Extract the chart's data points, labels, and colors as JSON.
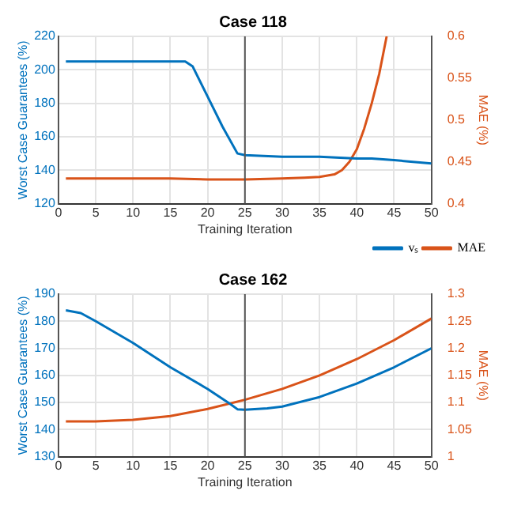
{
  "chart_data": [
    {
      "type": "line",
      "title": "Case 118",
      "xlabel": "Training Iteration",
      "ylabel": "Worst Case Guarantees (%)",
      "y2label": "MAE (%)",
      "xlim": [
        0,
        50
      ],
      "xticks": [
        0,
        5,
        10,
        15,
        20,
        25,
        30,
        35,
        40,
        45,
        50
      ],
      "ylim": [
        120,
        220
      ],
      "yticks": [
        120,
        140,
        160,
        180,
        200,
        220
      ],
      "y2lim": [
        0.4,
        0.6
      ],
      "y2ticks": [
        0.4,
        0.45,
        0.5,
        0.55,
        0.6
      ],
      "grid": true,
      "legend": false,
      "marker": "none",
      "ref_lines": [
        {
          "axis": "x",
          "value": 25,
          "color": "#555555"
        }
      ],
      "series": [
        {
          "color": "#0072bd",
          "x": [
            1,
            5,
            10,
            15,
            17,
            18,
            20,
            22,
            24,
            25,
            30,
            35,
            40,
            42,
            45,
            50
          ],
          "values": [
            205,
            205,
            205,
            205,
            205,
            202,
            184,
            166,
            150,
            149,
            148,
            148,
            147,
            147,
            146,
            144
          ]
        },
        {
          "color": "#d95319",
          "axis": "y2",
          "x": [
            1,
            5,
            10,
            15,
            20,
            25,
            30,
            33,
            35,
            37,
            38,
            39,
            40,
            41,
            42,
            43,
            44
          ],
          "values": [
            0.43,
            0.43,
            0.43,
            0.43,
            0.429,
            0.429,
            0.43,
            0.431,
            0.432,
            0.435,
            0.44,
            0.45,
            0.465,
            0.49,
            0.52,
            0.555,
            0.6
          ]
        }
      ]
    },
    {
      "type": "line",
      "title": "Case 162",
      "xlabel": "Training Iteration",
      "ylabel": "Worst Case Guarantees (%)",
      "y2label": "MAE (%)",
      "xlim": [
        0,
        50
      ],
      "xticks": [
        0,
        5,
        10,
        15,
        20,
        25,
        30,
        35,
        40,
        45,
        50
      ],
      "ylim": [
        130,
        190
      ],
      "yticks": [
        130,
        140,
        150,
        160,
        170,
        180,
        190
      ],
      "y2lim": [
        1,
        1.3
      ],
      "y2ticks": [
        1,
        1.05,
        1.1,
        1.15,
        1.2,
        1.25,
        1.3
      ],
      "grid": true,
      "legend": "top right",
      "marker": "none",
      "ref_lines": [
        {
          "axis": "x",
          "value": 25,
          "color": "#555555"
        }
      ],
      "series": [
        {
          "name": "vₛ",
          "color": "#0072bd",
          "x": [
            1,
            3,
            5,
            10,
            15,
            20,
            23,
            24,
            25,
            28,
            30,
            35,
            40,
            45,
            50
          ],
          "values": [
            184,
            183,
            180,
            172,
            163,
            155,
            149.5,
            147.5,
            147.3,
            147.8,
            148.5,
            152,
            157,
            163,
            170
          ]
        },
        {
          "name": "MAE",
          "color": "#d95319",
          "axis": "y2",
          "x": [
            1,
            5,
            10,
            15,
            20,
            25,
            30,
            35,
            40,
            45,
            50
          ],
          "values": [
            1.065,
            1.065,
            1.068,
            1.075,
            1.088,
            1.105,
            1.125,
            1.15,
            1.18,
            1.215,
            1.255
          ]
        }
      ]
    }
  ]
}
